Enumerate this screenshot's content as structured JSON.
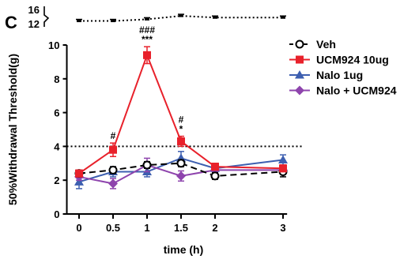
{
  "chart_data": {
    "type": "line",
    "panel_label": "C",
    "xlabel": "time (h)",
    "ylabel": "50%Withdrawal Threshold(g)",
    "x_ticks": [
      0,
      0.5,
      1,
      1.5,
      2,
      3
    ],
    "y_ticks": [
      0,
      2,
      4,
      6,
      8,
      10
    ],
    "ylim": [
      0,
      10
    ],
    "top_break_ticks": [
      "16",
      "12"
    ],
    "threshold_line": 4,
    "legend_position": "top-right",
    "series": [
      {
        "name": "Veh",
        "color": "#000000",
        "marker": "circle-open",
        "line_style": "dashed",
        "x": [
          0,
          0.5,
          1,
          1.5,
          2,
          3
        ],
        "y": [
          2.4,
          2.6,
          2.9,
          3.0,
          2.25,
          2.5
        ],
        "err": [
          0.2,
          0.2,
          0.2,
          0.2,
          0.2,
          0.3
        ],
        "upper_panel_y": [
          13.5,
          13.5,
          14.0,
          15.0,
          14.5,
          14.5
        ]
      },
      {
        "name": "UCM924 10ug",
        "color": "#e8212b",
        "marker": "square",
        "line_style": "solid",
        "x": [
          0,
          0.5,
          1,
          1.5,
          2,
          3
        ],
        "y": [
          2.4,
          3.8,
          9.4,
          4.3,
          2.8,
          2.7
        ],
        "err": [
          0.2,
          0.4,
          0.5,
          0.3,
          0.2,
          0.2
        ]
      },
      {
        "name": "Nalo 1ug",
        "color": "#3d5fb0",
        "marker": "triangle",
        "line_style": "solid",
        "x": [
          0,
          0.5,
          1,
          1.5,
          2,
          3
        ],
        "y": [
          1.9,
          2.5,
          2.5,
          3.3,
          2.7,
          3.2
        ],
        "err": [
          0.4,
          0.3,
          0.3,
          0.4,
          0.3,
          0.3
        ]
      },
      {
        "name": "Nalo + UCM924",
        "color": "#8e44ad",
        "marker": "diamond",
        "line_style": "solid",
        "x": [
          0,
          0.5,
          1,
          1.5,
          2,
          3
        ],
        "y": [
          2.2,
          1.8,
          2.9,
          2.25,
          2.6,
          2.6
        ],
        "err": [
          0.2,
          0.3,
          0.4,
          0.3,
          0.2,
          0.2
        ]
      }
    ],
    "annotations": [
      {
        "x": 0.5,
        "lines": [
          "#"
        ]
      },
      {
        "x": 1,
        "lines": [
          "###",
          "***"
        ]
      },
      {
        "x": 1.5,
        "lines": [
          "#",
          "*"
        ]
      }
    ]
  }
}
